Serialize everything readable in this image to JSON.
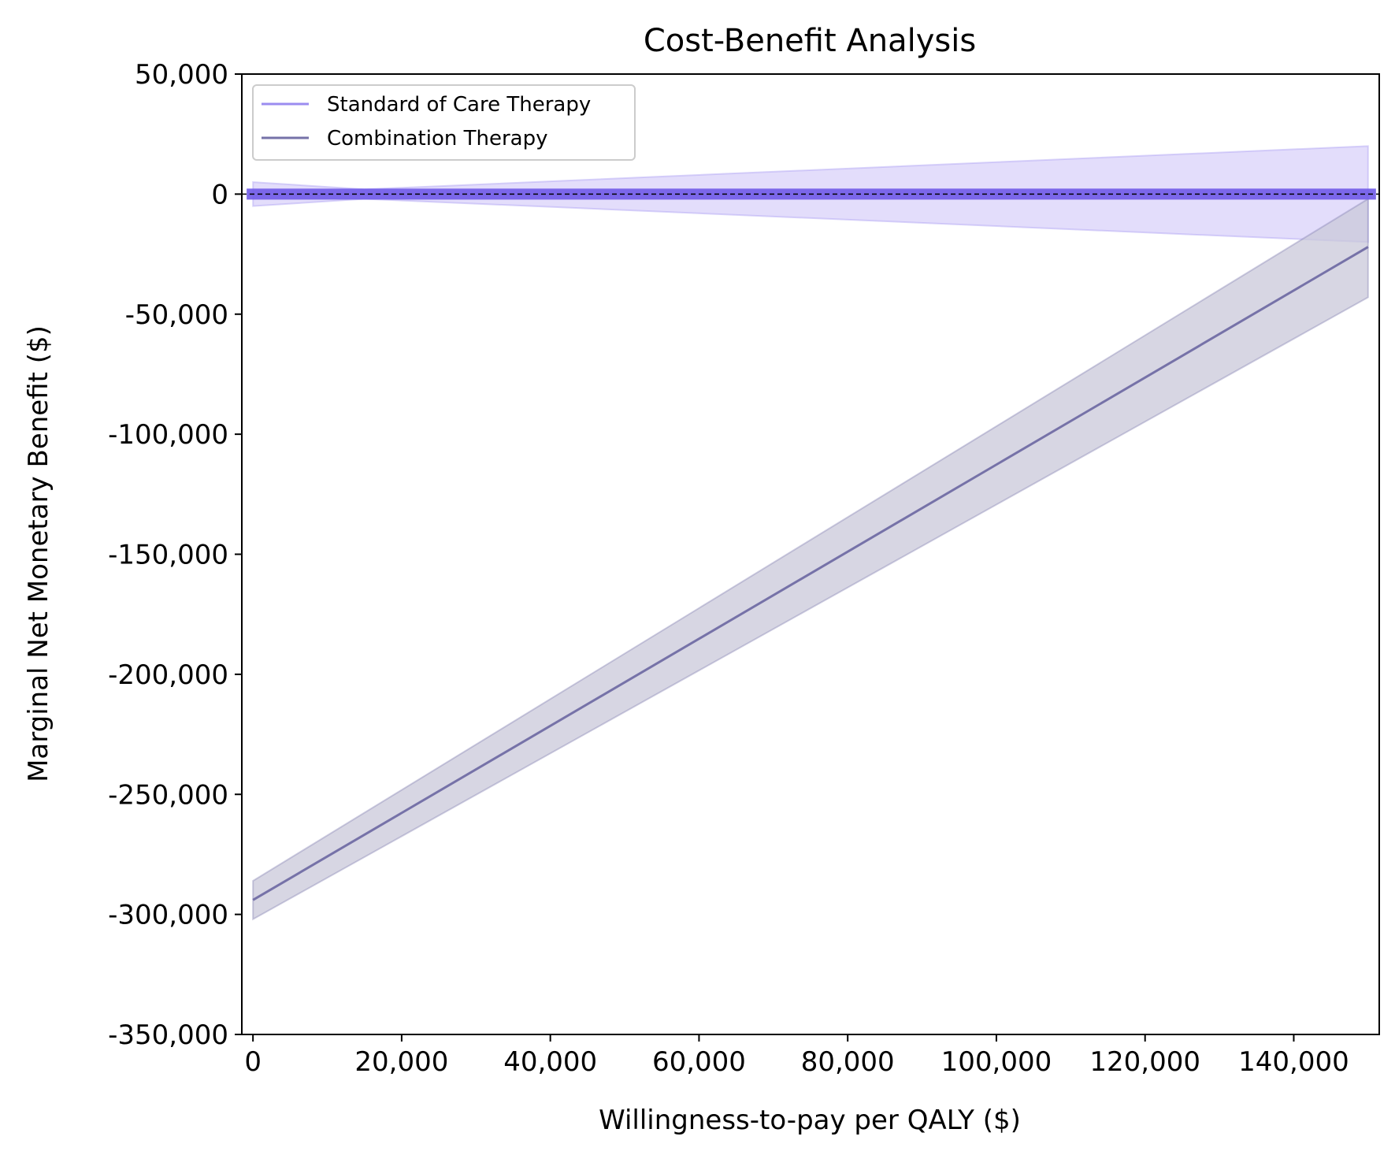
{
  "chart_data": {
    "type": "line",
    "title": "Cost-Benefit Analysis",
    "xlabel": "Willingness-to-pay per QALY ($)",
    "ylabel": "Marginal Net Monetary Benefit ($)",
    "xlim": [
      -1500,
      151500
    ],
    "ylim": [
      -350000,
      50000
    ],
    "x_ticks": [
      0,
      20000,
      40000,
      60000,
      80000,
      100000,
      120000,
      140000
    ],
    "x_tick_labels": [
      "0",
      "20,000",
      "40,000",
      "60,000",
      "80,000",
      "100,000",
      "120,000",
      "140,000"
    ],
    "y_ticks": [
      50000,
      0,
      -50000,
      -100000,
      -150000,
      -200000,
      -250000,
      -300000,
      -350000
    ],
    "y_tick_labels": [
      "50,000",
      "0",
      "-50,000",
      "-100,000",
      "-150,000",
      "-200,000",
      "-250,000",
      "-300,000",
      "-350,000"
    ],
    "grid": false,
    "legend_position": "top-left",
    "reference_line": {
      "y": 0,
      "style": "dashed"
    },
    "series": [
      {
        "name": "Standard of Care Therapy",
        "color": "#9b8cf0",
        "band_color": "#d9d2fa",
        "x": [
          0,
          150000
        ],
        "y": [
          0,
          0
        ],
        "lower": [
          -5000,
          -20000
        ],
        "upper": [
          5000,
          20000
        ],
        "lower_mid": {
          "x": 15000,
          "y": -2000
        },
        "upper_mid": {
          "x": 15000,
          "y": 2000
        }
      },
      {
        "name": "Combination Therapy",
        "color": "#7672a8",
        "band_color": "#c9c8da",
        "x": [
          0,
          150000
        ],
        "y": [
          -294000,
          -22000
        ],
        "lower": [
          -302000,
          -43000
        ],
        "upper": [
          -286000,
          -2000
        ]
      }
    ]
  }
}
